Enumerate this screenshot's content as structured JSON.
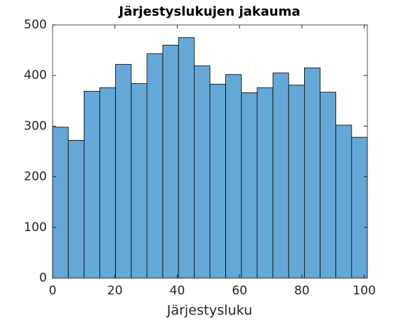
{
  "chart_data": {
    "type": "histogram",
    "title": "Järjestyslukujen jakauma",
    "xlabel": "Järjestysluku",
    "bins": [
      0,
      5.05,
      10.1,
      15.15,
      20.2,
      25.25,
      30.3,
      35.35,
      40.4,
      45.45,
      50.5,
      55.55,
      60.6,
      65.65,
      70.7,
      75.75,
      80.8,
      85.85,
      90.9,
      95.95,
      101
    ],
    "values": [
      298,
      272,
      369,
      376,
      422,
      384,
      443,
      460,
      475,
      419,
      383,
      402,
      366,
      376,
      405,
      381,
      415,
      367,
      302,
      278
    ],
    "color": "#64a8d8",
    "xlim": [
      0,
      101
    ],
    "xticks": [
      0,
      20,
      40,
      60,
      80,
      100
    ],
    "ylim": [
      0,
      500
    ],
    "yticks": [
      0,
      100,
      200,
      300,
      400,
      500
    ]
  }
}
